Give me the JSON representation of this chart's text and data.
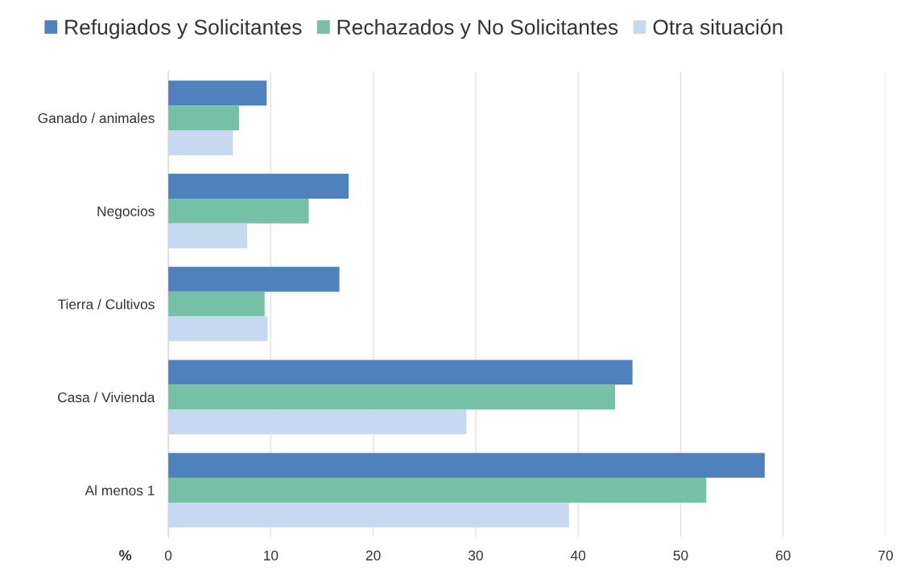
{
  "chart_data": {
    "type": "bar",
    "orientation": "horizontal",
    "xlabel": "%",
    "categories": [
      "Ganado / animales",
      "Negocios",
      "Tierra / Cultivos",
      "Casa / Vivienda",
      "Al menos 1"
    ],
    "series": [
      {
        "name": "Refugiados y Solicitantes",
        "color": "#4f81bd",
        "values": [
          9.6,
          17.6,
          16.7,
          45.3,
          58.2
        ]
      },
      {
        "name": "Rechazados y No Solicitantes",
        "color": "#76c0a8",
        "values": [
          6.9,
          13.7,
          9.4,
          43.6,
          52.5
        ]
      },
      {
        "name": "Otra situación",
        "color": "#c6d9f0",
        "values": [
          6.3,
          7.7,
          9.7,
          29.1,
          39.1
        ]
      }
    ],
    "xlim": [
      0,
      70
    ],
    "xticks": [
      0,
      10,
      20,
      30,
      40,
      50,
      60,
      70
    ],
    "grid": "x",
    "legend": "top"
  }
}
